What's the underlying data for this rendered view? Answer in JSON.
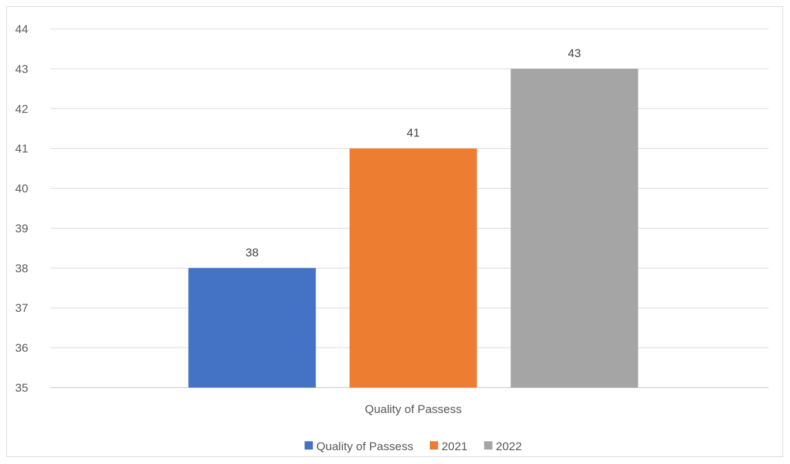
{
  "chart_data": {
    "type": "bar",
    "categories": [
      "Quality of Passess"
    ],
    "series": [
      {
        "name": "Quality of Passess",
        "values": [
          38
        ],
        "color": "#4472C4"
      },
      {
        "name": "2021",
        "values": [
          41
        ],
        "color": "#ED7D31"
      },
      {
        "name": "2022",
        "values": [
          43
        ],
        "color": "#A5A5A5"
      }
    ],
    "ylim": [
      35,
      44
    ],
    "yticks": [
      35,
      36,
      37,
      38,
      39,
      40,
      41,
      42,
      43,
      44
    ],
    "grid": true,
    "legend_position": "bottom",
    "data_labels": true
  }
}
